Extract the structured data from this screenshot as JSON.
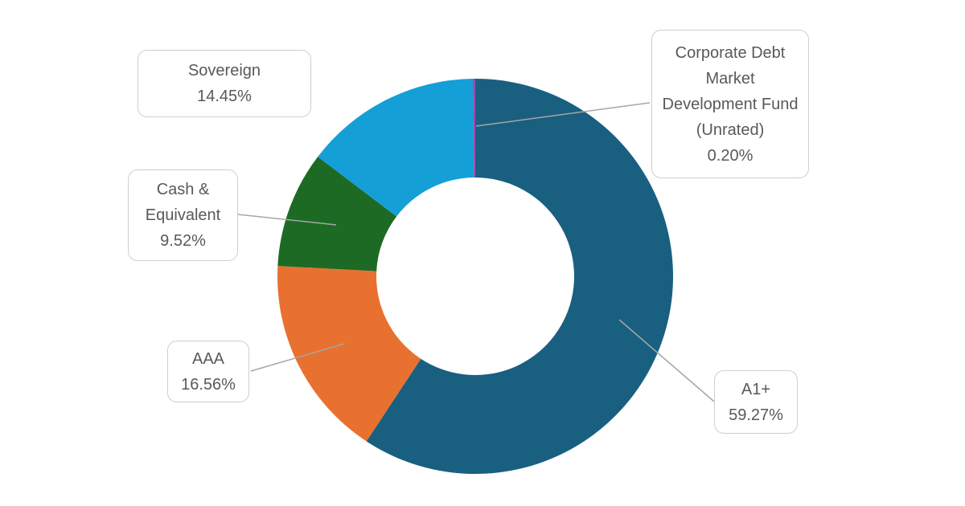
{
  "chart_data": {
    "type": "pie",
    "style": "donut",
    "title": "",
    "slices": [
      {
        "name": "A1+",
        "value": 59.27,
        "label": "59.27%",
        "color": "#195f80"
      },
      {
        "name": "AAA",
        "value": 16.56,
        "label": "16.56%",
        "color": "#e87130"
      },
      {
        "name": "Cash & Equivalent",
        "value": 9.52,
        "label": "9.52%",
        "color": "#1d6a24"
      },
      {
        "name": "Sovereign",
        "value": 14.45,
        "label": "14.45%",
        "color": "#149fd7"
      },
      {
        "name": "Corporate Debt Market Development Fund (Unrated)",
        "value": 0.2,
        "label": "0.20%",
        "color": "#a448b0"
      }
    ],
    "legend": "none"
  }
}
